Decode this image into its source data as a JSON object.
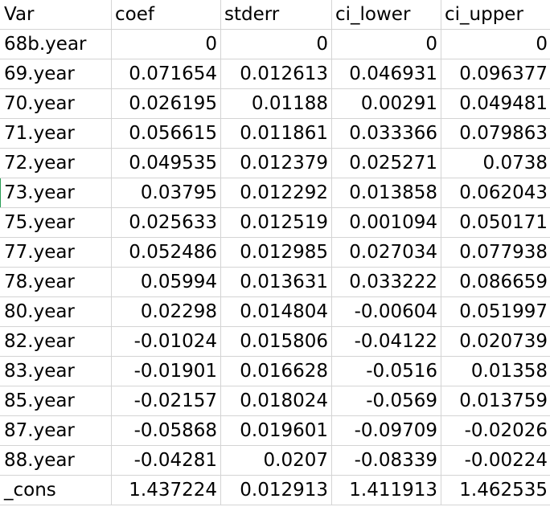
{
  "headers": [
    "Var",
    "coef",
    "stderr",
    "ci_lower",
    "ci_upper"
  ],
  "rows": [
    {
      "var": "68b.year",
      "coef": "0",
      "stderr": "0",
      "ci_lower": "0",
      "ci_upper": "0"
    },
    {
      "var": "69.year",
      "coef": "0.071654",
      "stderr": "0.012613",
      "ci_lower": "0.046931",
      "ci_upper": "0.096377"
    },
    {
      "var": "70.year",
      "coef": "0.026195",
      "stderr": "0.01188",
      "ci_lower": "0.00291",
      "ci_upper": "0.049481"
    },
    {
      "var": "71.year",
      "coef": "0.056615",
      "stderr": "0.011861",
      "ci_lower": "0.033366",
      "ci_upper": "0.079863"
    },
    {
      "var": "72.year",
      "coef": "0.049535",
      "stderr": "0.012379",
      "ci_lower": "0.025271",
      "ci_upper": "0.0738"
    },
    {
      "var": "73.year",
      "coef": "0.03795",
      "stderr": "0.012292",
      "ci_lower": "0.013858",
      "ci_upper": "0.062043"
    },
    {
      "var": "75.year",
      "coef": "0.025633",
      "stderr": "0.012519",
      "ci_lower": "0.001094",
      "ci_upper": "0.050171"
    },
    {
      "var": "77.year",
      "coef": "0.052486",
      "stderr": "0.012985",
      "ci_lower": "0.027034",
      "ci_upper": "0.077938"
    },
    {
      "var": "78.year",
      "coef": "0.05994",
      "stderr": "0.013631",
      "ci_lower": "0.033222",
      "ci_upper": "0.086659"
    },
    {
      "var": "80.year",
      "coef": "0.02298",
      "stderr": "0.014804",
      "ci_lower": "-0.00604",
      "ci_upper": "0.051997"
    },
    {
      "var": "82.year",
      "coef": "-0.01024",
      "stderr": "0.015806",
      "ci_lower": "-0.04122",
      "ci_upper": "0.020739"
    },
    {
      "var": "83.year",
      "coef": "-0.01901",
      "stderr": "0.016628",
      "ci_lower": "-0.0516",
      "ci_upper": "0.01358"
    },
    {
      "var": "85.year",
      "coef": "-0.02157",
      "stderr": "0.018024",
      "ci_lower": "-0.0569",
      "ci_upper": "0.013759"
    },
    {
      "var": "87.year",
      "coef": "-0.05868",
      "stderr": "0.019601",
      "ci_lower": "-0.09709",
      "ci_upper": "-0.02026"
    },
    {
      "var": "88.year",
      "coef": "-0.04281",
      "stderr": "0.0207",
      "ci_lower": "-0.08339",
      "ci_upper": "-0.00224"
    },
    {
      "var": "_cons",
      "coef": "1.437224",
      "stderr": "0.012913",
      "ci_lower": "1.411913",
      "ci_upper": "1.462535"
    }
  ],
  "colors": {
    "gridline": "#d4d4d4",
    "text": "#000000",
    "background": "#ffffff",
    "selection_marker": "#2a9d56"
  }
}
